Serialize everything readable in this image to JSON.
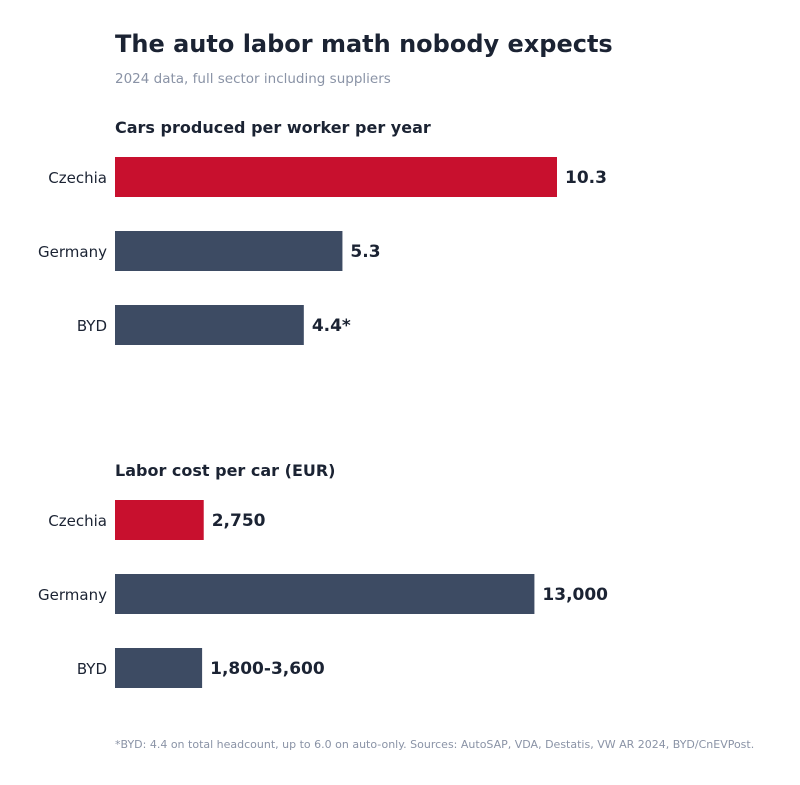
{
  "title": "The auto labor math nobody expects",
  "subtitle": "2024 data, full sector including suppliers",
  "footnote": "*BYD: 4.4 on total headcount, up to 6.0 on auto-only. Sources: AutoSAP, VDA, Destatis, VW AR 2024, BYD/CnEVPost.",
  "colors": {
    "highlight": "#c8102e",
    "default": "#3d4b63"
  },
  "chart_data": [
    {
      "type": "bar",
      "orientation": "horizontal",
      "title": "Cars produced per worker per year",
      "categories": [
        "Czechia",
        "Germany",
        "BYD"
      ],
      "values": [
        10.3,
        5.3,
        4.4
      ],
      "value_labels": [
        "10.3",
        "5.3",
        "4.4*"
      ],
      "highlight": [
        true,
        false,
        false
      ],
      "xlim": [
        0,
        10.3
      ]
    },
    {
      "type": "bar",
      "orientation": "horizontal",
      "title": "Labor cost per car (EUR)",
      "categories": [
        "Czechia",
        "Germany",
        "BYD"
      ],
      "values": [
        2750,
        13000,
        2700
      ],
      "value_labels": [
        "2,750",
        "13,000",
        "1,800-3,600"
      ],
      "highlight": [
        true,
        false,
        false
      ],
      "xlim": [
        0,
        13700
      ]
    }
  ]
}
